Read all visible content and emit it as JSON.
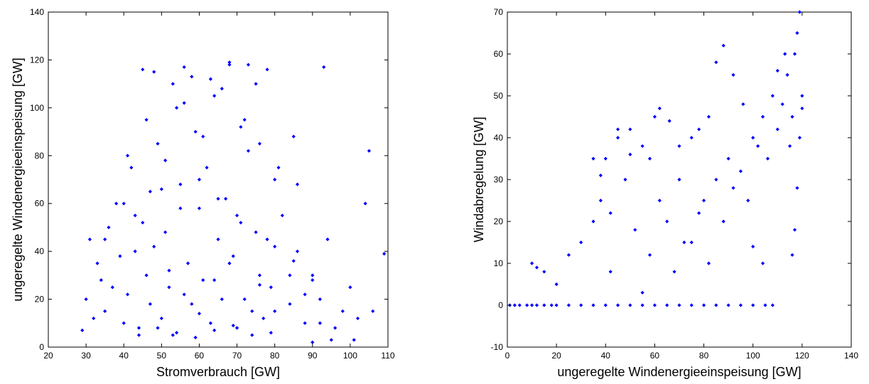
{
  "chart_data": [
    {
      "type": "scatter",
      "xlabel": "Stromverbrauch [GW]",
      "ylabel": "ungeregelte Windenergieeinspeisung [GW]",
      "xlim": [
        20,
        110
      ],
      "ylim": [
        0,
        140
      ],
      "xticks": [
        "20",
        "30",
        "40",
        "50",
        "60",
        "70",
        "80",
        "90",
        "100",
        "110"
      ],
      "yticks": [
        "0",
        "20",
        "40",
        "60",
        "80",
        "100",
        "120",
        "140"
      ],
      "grid": false,
      "marker_color": "#0000ff",
      "series": [
        {
          "x": [
            29,
            31,
            30,
            33,
            35,
            36,
            34,
            38,
            40,
            39,
            42,
            41,
            44,
            43,
            45,
            46,
            48,
            47,
            50,
            49,
            52,
            51,
            54,
            53,
            55,
            57,
            56,
            58,
            60,
            59,
            61,
            63,
            62,
            65,
            64,
            66,
            68,
            67,
            70,
            69,
            72,
            71,
            74,
            73,
            76,
            75,
            78,
            77,
            80,
            79,
            82,
            84,
            86,
            85,
            88,
            90,
            92,
            94,
            96,
            98,
            100,
            102,
            104,
            106,
            109,
            32,
            37,
            43,
            47,
            52,
            56,
            60,
            64,
            68,
            72,
            76,
            80,
            84,
            88,
            92,
            35,
            40,
            45,
            50,
            55,
            60,
            65,
            70,
            75,
            80,
            85,
            90,
            41,
            46,
            51,
            56,
            61,
            66,
            71,
            76,
            81,
            86,
            48,
            53,
            58,
            63,
            68,
            73,
            78,
            44,
            49,
            54,
            59,
            64,
            69,
            74,
            79,
            90,
            95,
            105,
            101,
            93
          ],
          "y": [
            7,
            45,
            20,
            35,
            15,
            50,
            28,
            60,
            10,
            38,
            75,
            22,
            8,
            55,
            116,
            30,
            42,
            65,
            12,
            85,
            25,
            48,
            100,
            5,
            68,
            35,
            117,
            18,
            58,
            90,
            28,
            10,
            75,
            45,
            105,
            20,
            118,
            62,
            8,
            38,
            95,
            52,
            15,
            82,
            30,
            110,
            45,
            12,
            70,
            25,
            55,
            18,
            40,
            88,
            10,
            30,
            20,
            45,
            8,
            15,
            25,
            12,
            60,
            15,
            39,
            12,
            25,
            40,
            18,
            32,
            22,
            14,
            28,
            35,
            20,
            26,
            15,
            30,
            22,
            10,
            45,
            60,
            52,
            66,
            58,
            70,
            62,
            55,
            48,
            42,
            36,
            28,
            80,
            95,
            78,
            102,
            88,
            108,
            92,
            85,
            75,
            68,
            115,
            110,
            113,
            112,
            119,
            118,
            116,
            5,
            8,
            6,
            4,
            7,
            9,
            5,
            6,
            2,
            3,
            82,
            3,
            117
          ]
        }
      ]
    },
    {
      "type": "scatter",
      "xlabel": "ungeregelte Windenergieeinspeisung [GW]",
      "ylabel": "Windabregelung [GW]",
      "xlim": [
        0,
        140
      ],
      "ylim": [
        -10,
        70
      ],
      "xticks": [
        "0",
        "20",
        "40",
        "60",
        "80",
        "100",
        "120",
        "140"
      ],
      "yticks": [
        "-10",
        "0",
        "10",
        "20",
        "30",
        "40",
        "50",
        "60",
        "70"
      ],
      "grid": false,
      "marker_color": "#0000ff",
      "series": [
        {
          "x": [
            1,
            3,
            5,
            8,
            10,
            12,
            15,
            18,
            20,
            25,
            30,
            35,
            40,
            45,
            50,
            55,
            60,
            65,
            70,
            75,
            80,
            85,
            90,
            95,
            100,
            105,
            108,
            10,
            12,
            15,
            20,
            25,
            30,
            35,
            38,
            40,
            42,
            45,
            48,
            50,
            52,
            55,
            58,
            60,
            62,
            65,
            68,
            70,
            72,
            75,
            78,
            80,
            82,
            85,
            88,
            90,
            92,
            95,
            98,
            100,
            102,
            104,
            106,
            108,
            110,
            112,
            114,
            115,
            116,
            117,
            118,
            119,
            120,
            118,
            119,
            120,
            117,
            116,
            113,
            110,
            104,
            100,
            96,
            92,
            88,
            85,
            82,
            78,
            75,
            70,
            66,
            62,
            58,
            55,
            50,
            45,
            42,
            38,
            35
          ],
          "y": [
            0,
            0,
            0,
            0,
            0,
            0,
            0,
            0,
            0,
            0,
            0,
            0,
            0,
            0,
            0,
            0,
            0,
            0,
            0,
            0,
            0,
            0,
            0,
            0,
            0,
            0,
            0,
            10,
            9,
            8,
            5,
            12,
            15,
            20,
            25,
            35,
            22,
            40,
            30,
            42,
            18,
            38,
            12,
            45,
            25,
            20,
            8,
            30,
            15,
            40,
            22,
            25,
            10,
            30,
            20,
            35,
            28,
            32,
            25,
            40,
            38,
            45,
            35,
            50,
            42,
            48,
            55,
            38,
            45,
            60,
            65,
            70,
            50,
            28,
            40,
            47,
            18,
            12,
            60,
            56,
            10,
            14,
            48,
            55,
            62,
            58,
            45,
            42,
            15,
            38,
            44,
            47,
            35,
            3,
            36,
            42,
            8,
            31,
            35
          ]
        }
      ]
    }
  ]
}
